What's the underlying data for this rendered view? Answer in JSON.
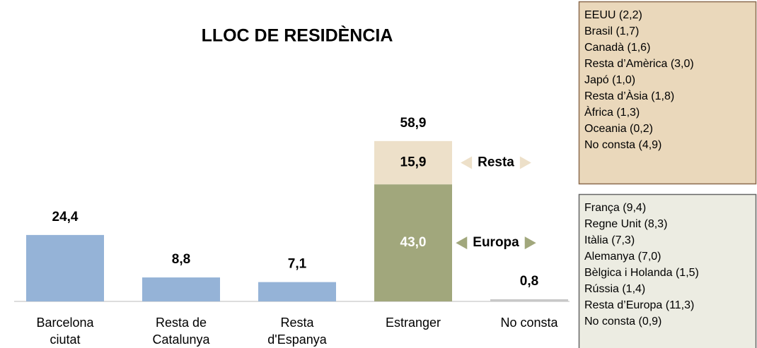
{
  "chart_data": {
    "type": "bar",
    "title": "LLOC DE RESIDÈNCIA",
    "categories": [
      [
        "Barcelona",
        "ciutat"
      ],
      [
        "Resta de",
        "Catalunya"
      ],
      [
        "Resta",
        "d'Espanya"
      ],
      [
        "Estranger"
      ],
      [
        "No consta"
      ]
    ],
    "ylim": [
      0,
      70
    ],
    "series": [
      {
        "colors": [
          "#95b3d7",
          "#95b3d7",
          "#95b3d7",
          null,
          "#c8c8c8"
        ],
        "values": [
          24.4,
          8.8,
          7.1,
          null,
          0.8
        ],
        "value_labels": [
          "24,4",
          "8,8",
          "7,1",
          null,
          "0,8"
        ]
      },
      {
        "name": "Europa",
        "color": "#a1a77c",
        "label_color": "#ffffff",
        "values": [
          null,
          null,
          null,
          43.0,
          null
        ],
        "value_labels": [
          null,
          null,
          null,
          "43,0",
          null
        ]
      },
      {
        "name": "Resta",
        "color": "#ede0c9",
        "label_color": "#000000",
        "values": [
          null,
          null,
          null,
          15.9,
          null
        ],
        "value_labels": [
          null,
          null,
          null,
          "15,9",
          null
        ]
      }
    ],
    "totals": [
      null,
      null,
      null,
      58.9,
      null
    ],
    "total_labels": [
      null,
      null,
      null,
      "58,9",
      null
    ],
    "notes": [
      {
        "color": "#ead8bb",
        "border": "#8b6a4e",
        "items": [
          "EEUU (2,2)",
          "Brasil (1,7)",
          "Canadà (1,6)",
          "Resta d’Amèrica (3,0)",
          "Japó (1,0)",
          "Resta d’Àsia (1,8)",
          "Àfrica (1,3)",
          "Oceania (0,2)",
          "No consta (4,9)"
        ]
      },
      {
        "color": "#ecece2",
        "border": "#666666",
        "items": [
          "França (9,4)",
          "Regne Unit (8,3)",
          "Itàlia (7,3)",
          "Alemanya (7,0)",
          "Bèlgica i Holanda (1,5)",
          "Rússia (1,4)",
          "Resta d’Europa (11,3)",
          "No consta (0,9)"
        ]
      }
    ]
  }
}
